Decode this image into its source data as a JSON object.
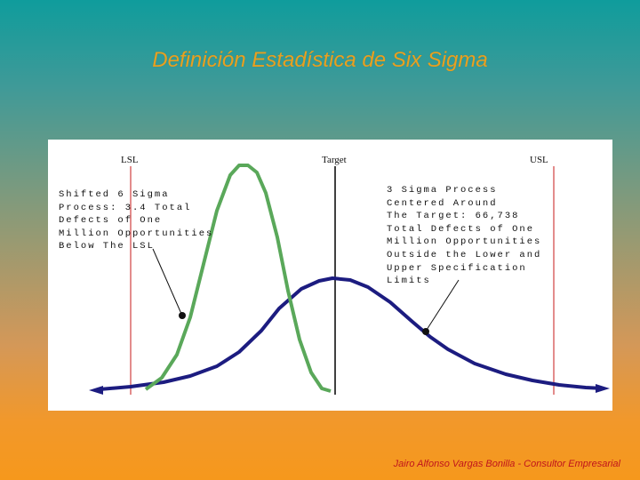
{
  "slide": {
    "title": "Definición Estadística de Six Sigma",
    "footer": "Jairo Alfonso Vargas Bonilla - Consultor Empresarial"
  },
  "figure": {
    "labels": {
      "lsl": "LSL",
      "target": "Target",
      "usl": "USL"
    },
    "annotations": {
      "shifted": "Shifted 6 Sigma\nProcess: 3.4 Total\nDefects of One\nMillion Opportunities\nBelow The LSL",
      "three_sigma": "3 Sigma Process\nCentered Around\nThe Target: 66,738\nTotal Defects of One\nMillion Opportunities\nOutside the Lower and\nUpper Specification\nLimits"
    },
    "colors": {
      "spec_lines": "#d04040",
      "target_line": "#000000",
      "six_sigma_curve": "#5aa85a",
      "three_sigma_curve": "#1c1c80"
    }
  }
}
